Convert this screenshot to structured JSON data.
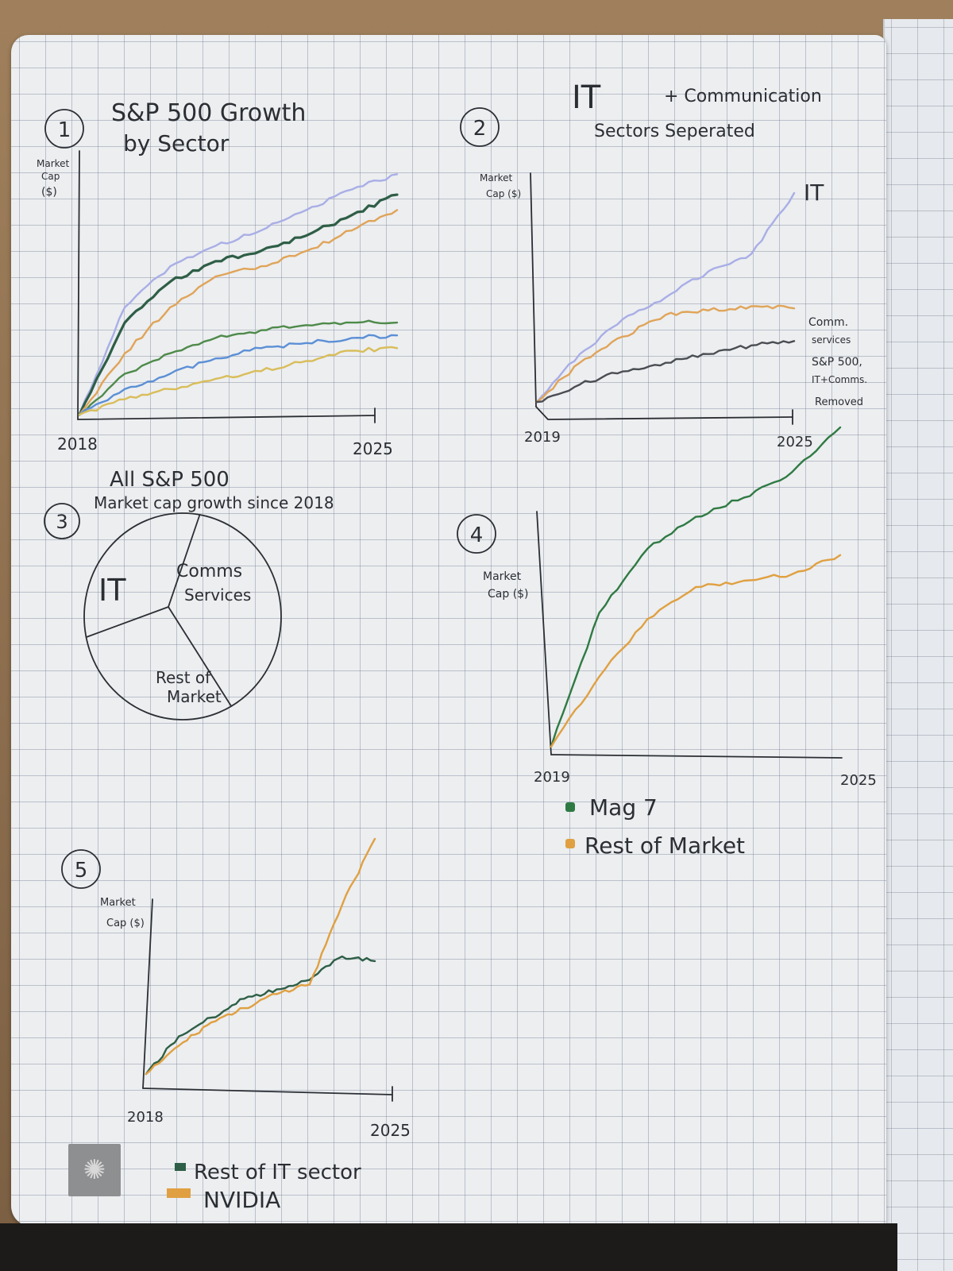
{
  "chart_data": [
    {
      "id": "1",
      "type": "line",
      "title": "S&P 500 Growth by Sector",
      "ylabel": "Market Cap ($)",
      "xlabel": "",
      "x": [
        2018,
        2019,
        2020,
        2021,
        2022,
        2023,
        2024,
        2025
      ],
      "xticks": [
        "2018",
        "2025"
      ],
      "ylim": [
        0,
        100
      ],
      "series": [
        {
          "color": "#a9aee6",
          "values": [
            0,
            42,
            58,
            66,
            72,
            80,
            88,
            94
          ]
        },
        {
          "color": "#2e5e46",
          "values": [
            0,
            36,
            52,
            60,
            64,
            70,
            78,
            86
          ]
        },
        {
          "color": "#e0a458",
          "values": [
            0,
            24,
            42,
            54,
            58,
            64,
            72,
            80
          ]
        },
        {
          "color": "#4e8a4a",
          "values": [
            0,
            16,
            24,
            30,
            33,
            35,
            36,
            36
          ]
        },
        {
          "color": "#5b8fd6",
          "values": [
            0,
            10,
            16,
            22,
            26,
            28,
            30,
            31
          ]
        },
        {
          "color": "#d9bd5a",
          "values": [
            0,
            6,
            10,
            14,
            17,
            21,
            25,
            26
          ]
        }
      ]
    },
    {
      "id": "2",
      "type": "line",
      "title": "IT + Communication Sectors Seperated",
      "ylabel": "Market Cap ($)",
      "xlabel": "",
      "x": [
        2019,
        2020,
        2021,
        2022,
        2023,
        2024,
        2025
      ],
      "xticks": [
        "2019",
        "2025"
      ],
      "ylim": [
        0,
        100
      ],
      "series": [
        {
          "name": "IT",
          "color": "#a9aee6",
          "values": [
            0,
            22,
            38,
            48,
            60,
            68,
            96
          ]
        },
        {
          "name": "Comm. services",
          "color": "#e0a458",
          "values": [
            0,
            18,
            30,
            40,
            42,
            44,
            43
          ]
        },
        {
          "name": "S&P 500, IT+Comms. Removed",
          "color": "#4a4d52",
          "values": [
            0,
            8,
            14,
            18,
            22,
            26,
            28
          ]
        }
      ]
    },
    {
      "id": "3",
      "type": "pie",
      "title": "All S&P 500 Market cap growth since 2018",
      "slices": [
        {
          "label": "IT",
          "value": 39
        },
        {
          "label": "Comms Services",
          "value": 30
        },
        {
          "label": "Rest of Market",
          "value": 31
        }
      ]
    },
    {
      "id": "4",
      "type": "line",
      "title": "",
      "ylabel": "Market Cap ($)",
      "xlabel": "",
      "x": [
        2019,
        2020,
        2021,
        2022,
        2023,
        2024,
        2025
      ],
      "xticks": [
        "2019",
        "2025"
      ],
      "ylim": [
        0,
        100
      ],
      "legend_position": "bottom-left",
      "series": [
        {
          "name": "Mag 7",
          "color": "#2f7a43",
          "values": [
            0,
            42,
            62,
            72,
            78,
            86,
            100
          ]
        },
        {
          "name": "Rest of Market",
          "color": "#e0a041",
          "values": [
            0,
            22,
            40,
            50,
            52,
            54,
            60
          ]
        }
      ]
    },
    {
      "id": "5",
      "type": "line",
      "title": "",
      "ylabel": "Market Cap ($)",
      "xlabel": "",
      "x": [
        2018,
        2019,
        2020,
        2021,
        2022,
        2023,
        2024,
        2025
      ],
      "xticks": [
        "2018",
        "2025"
      ],
      "ylim": [
        0,
        100
      ],
      "legend_position": "bottom-left",
      "series": [
        {
          "name": "Rest of IT sector",
          "color": "#2e5e46",
          "values": [
            0,
            16,
            24,
            32,
            36,
            40,
            50,
            48
          ]
        },
        {
          "name": "NVIDIA",
          "color": "#e0a041",
          "values": [
            0,
            12,
            22,
            28,
            34,
            38,
            72,
            100
          ]
        }
      ]
    }
  ],
  "labels": {
    "c1": {
      "num": "1",
      "title1": "S&P 500 Growth",
      "title2": "by Sector",
      "ylab1": "Market",
      "ylab2": "Cap",
      "ylab3": "($)",
      "x0": "2018",
      "x1": "2025"
    },
    "c2": {
      "num": "2",
      "title1": "IT",
      "title1b": "+ Communication",
      "title2": "Sectors Seperated",
      "ylab1": "Market",
      "ylab2": "Cap ($)",
      "x0": "2019",
      "x1": "2025",
      "s_it": "IT",
      "s_comm1": "Comm.",
      "s_comm2": "services",
      "s_sp1": "S&P 500,",
      "s_sp2": "IT+Comms.",
      "s_sp3": "Removed"
    },
    "c3": {
      "num": "3",
      "title1": "All S&P 500",
      "title2": "Market cap growth since 2018",
      "it": "IT",
      "comms1": "Comms",
      "comms2": "Services",
      "rest1": "Rest of",
      "rest2": "Market"
    },
    "c4": {
      "num": "4",
      "ylab1": "Market",
      "ylab2": "Cap ($)",
      "x0": "2019",
      "x1": "2025",
      "leg1": "Mag 7",
      "leg2": "Rest of Market"
    },
    "c5": {
      "num": "5",
      "ylab1": "Market",
      "ylab2": "Cap ($)",
      "x0": "2018",
      "x1": "2025",
      "leg1": "Rest of IT sector",
      "leg2": "NVIDIA"
    }
  },
  "colors": {
    "ink": "#2b2e33",
    "paper": "#eceef0",
    "grid": "#7882a0"
  }
}
